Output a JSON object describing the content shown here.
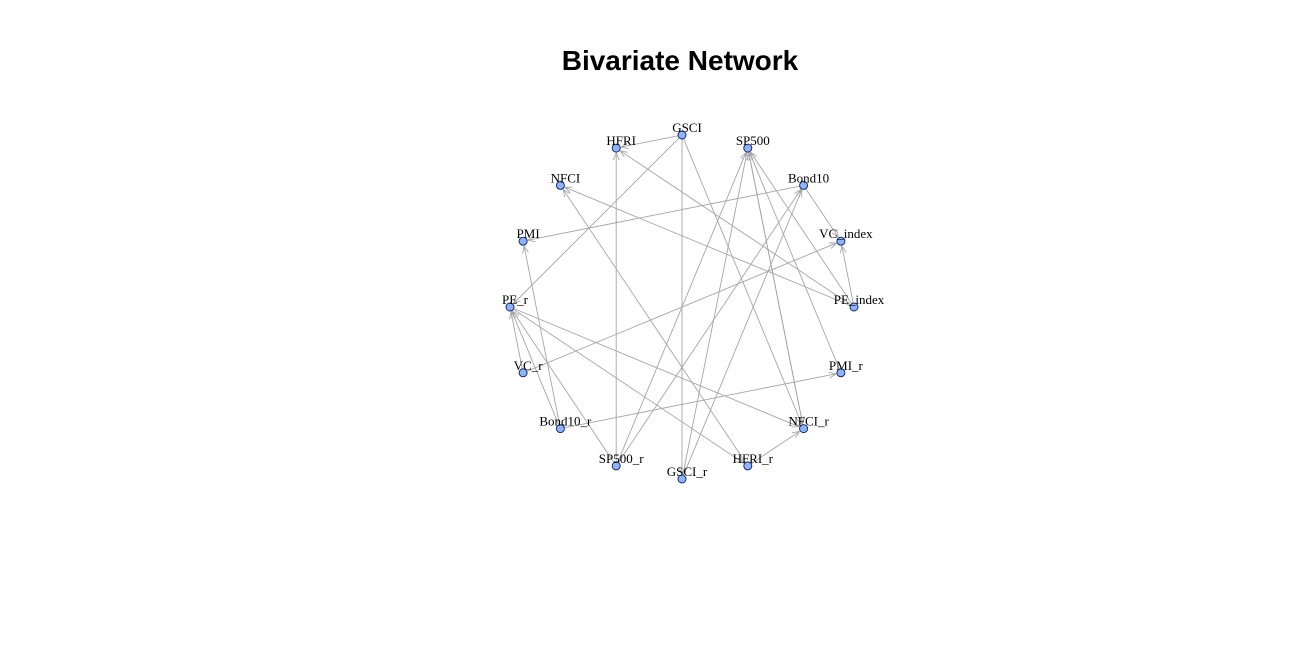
{
  "title": "Bivariate Network",
  "colors": {
    "node_fill": "#8db4ff",
    "node_stroke": "#1a2a66",
    "edge": "#a6a6a6"
  },
  "nodes": [
    {
      "id": "GSCI",
      "label": "GSCI"
    },
    {
      "id": "SP500",
      "label": "SP500"
    },
    {
      "id": "Bond10",
      "label": "Bond10"
    },
    {
      "id": "VC_index",
      "label": "VC_index"
    },
    {
      "id": "PE_index",
      "label": "PE_index"
    },
    {
      "id": "PMI_r",
      "label": "PMI_r"
    },
    {
      "id": "NFCI_r",
      "label": "NFCI_r"
    },
    {
      "id": "HFRI_r",
      "label": "HFRI_r"
    },
    {
      "id": "GSCI_r",
      "label": "GSCI_r"
    },
    {
      "id": "SP500_r",
      "label": "SP500_r"
    },
    {
      "id": "Bond10_r",
      "label": "Bond10_r"
    },
    {
      "id": "VC_r",
      "label": "VC_r"
    },
    {
      "id": "PE_r",
      "label": "PE_r"
    },
    {
      "id": "PMI",
      "label": "PMI"
    },
    {
      "id": "NFCI",
      "label": "NFCI"
    },
    {
      "id": "HFRI",
      "label": "HFRI"
    }
  ],
  "edges": [
    {
      "from": "GSCI",
      "to": "HFRI"
    },
    {
      "from": "GSCI",
      "to": "PE_r"
    },
    {
      "from": "GSCI",
      "to": "GSCI_r"
    },
    {
      "from": "GSCI",
      "to": "NFCI_r"
    },
    {
      "from": "SP500_r",
      "to": "HFRI"
    },
    {
      "from": "PE_index",
      "to": "HFRI"
    },
    {
      "from": "PE_index",
      "to": "NFCI"
    },
    {
      "from": "PE_index",
      "to": "SP500"
    },
    {
      "from": "NFCI_r",
      "to": "SP500"
    },
    {
      "from": "PMI_r",
      "to": "SP500"
    },
    {
      "from": "SP500_r",
      "to": "SP500"
    },
    {
      "from": "GSCI_r",
      "to": "SP500"
    },
    {
      "from": "Bond10",
      "to": "PMI"
    },
    {
      "from": "Bond10",
      "to": "VC_index"
    },
    {
      "from": "SP500_r",
      "to": "Bond10"
    },
    {
      "from": "Bond10_r",
      "to": "PMI_r"
    },
    {
      "from": "Bond10_r",
      "to": "PMI"
    },
    {
      "from": "VC_r",
      "to": "VC_index"
    },
    {
      "from": "PE_index",
      "to": "VC_index"
    },
    {
      "from": "PE_r",
      "to": "NFCI_r"
    },
    {
      "from": "PE_r",
      "to": "HFRI_r"
    },
    {
      "from": "VC_r",
      "to": "PE_r"
    },
    {
      "from": "Bond10_r",
      "to": "PE_r"
    },
    {
      "from": "SP500_r",
      "to": "PE_r"
    },
    {
      "from": "HFRI_r",
      "to": "NFCI_r"
    },
    {
      "from": "HFRI_r",
      "to": "NFCI"
    },
    {
      "from": "SP500",
      "to": "NFCI_r"
    },
    {
      "from": "GSCI_r",
      "to": "Bond10"
    }
  ]
}
